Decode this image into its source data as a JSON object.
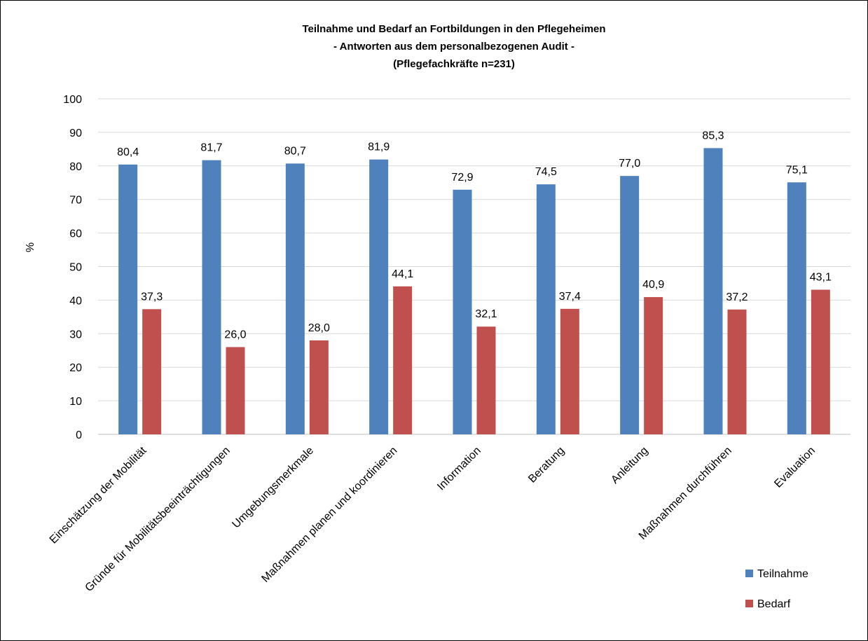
{
  "chart_data": {
    "type": "bar",
    "title_lines": [
      "Teilnahme und Bedarf an Fortbildungen in den Pflegeheimen",
      "- Antworten aus dem personalbezogenen Audit -",
      "(Pflegefachkräfte n=231)"
    ],
    "xlabel": "",
    "ylabel": "%",
    "ylim": [
      0,
      100
    ],
    "yticks": [
      "0",
      "10",
      "20",
      "30",
      "40",
      "50",
      "60",
      "70",
      "80",
      "90",
      "100"
    ],
    "grid": true,
    "legend_position": "bottom-right",
    "categories": [
      "Einschätzung der Mobilität",
      "Gründe für Mobilitätsbeeinträchtigungen",
      "Umgebungsmerkmale",
      "Maßnahmen planen und koordinieren",
      "Information",
      "Beratung",
      "Anleitung",
      "Maßnahmen durchführen",
      "Evaluation"
    ],
    "series": [
      {
        "name": "Teilnahme",
        "color": "#4F81BD",
        "values": [
          80.4,
          81.7,
          80.7,
          81.9,
          72.9,
          74.5,
          77.0,
          85.3,
          75.1
        ],
        "labels": [
          "80,4",
          "81,7",
          "80,7",
          "81,9",
          "72,9",
          "74,5",
          "77,0",
          "85,3",
          "75,1"
        ]
      },
      {
        "name": "Bedarf",
        "color": "#C0504D",
        "values": [
          37.3,
          26.0,
          28.0,
          44.1,
          32.1,
          37.4,
          40.9,
          37.2,
          43.1
        ],
        "labels": [
          "37,3",
          "26,0",
          "28,0",
          "44,1",
          "32,1",
          "37,4",
          "40,9",
          "37,2",
          "43,1"
        ]
      }
    ]
  }
}
